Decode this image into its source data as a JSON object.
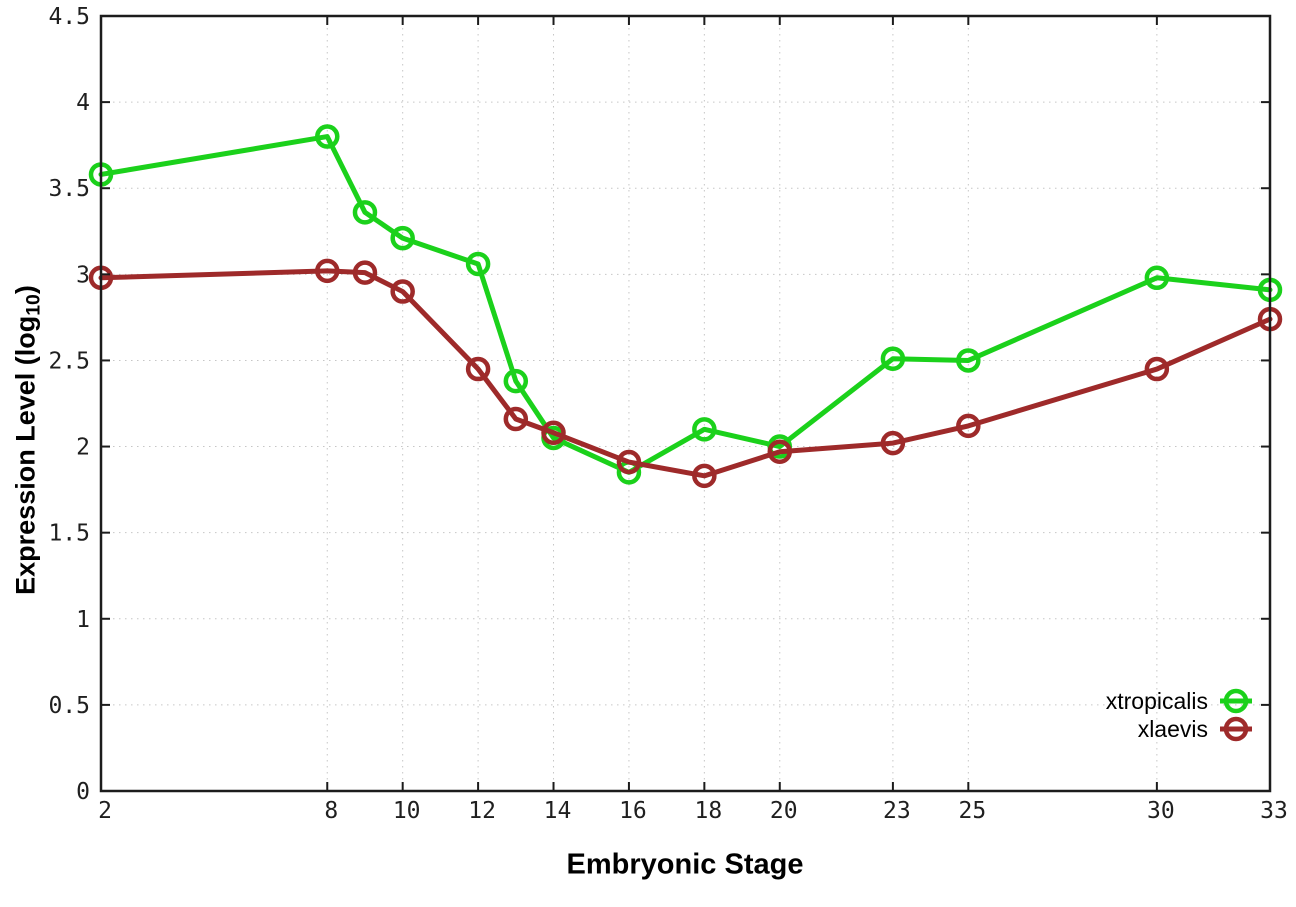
{
  "figure": {
    "background": "#ffffff",
    "border_color": "#1c1c1c",
    "grid_color": "#c6c6c6",
    "tick_text_color": "#1f1f1f"
  },
  "chart_data": {
    "type": "line",
    "title": "",
    "xlabel": "Embryonic Stage",
    "ylabel": "Expression Level (log10)",
    "ylabel_parts": {
      "main": "Expression Level (log",
      "sub": "10",
      "close": ")"
    },
    "x": [
      2,
      8,
      9,
      10,
      12,
      13,
      14,
      16,
      18,
      20,
      23,
      25,
      30,
      33
    ],
    "series": [
      {
        "name": "xtropicalis",
        "color": "#1bd11b",
        "marker": "open-circle",
        "values": [
          3.58,
          3.8,
          3.36,
          3.21,
          3.06,
          2.38,
          2.05,
          1.85,
          2.1,
          2.0,
          2.51,
          2.5,
          2.98,
          2.91
        ]
      },
      {
        "name": "xlaevis",
        "color": "#9e2a2a",
        "marker": "open-circle",
        "values": [
          2.98,
          3.02,
          3.01,
          2.9,
          2.45,
          2.16,
          2.08,
          1.91,
          1.83,
          1.97,
          2.02,
          2.12,
          2.45,
          2.74
        ]
      }
    ],
    "x_ticks": [
      2,
      8,
      10,
      12,
      14,
      16,
      18,
      20,
      23,
      25,
      30,
      33
    ],
    "x_tick_labels": [
      "2",
      "8",
      "10",
      "12",
      "14",
      "16",
      "18",
      "20",
      "23",
      "25",
      "30",
      "33"
    ],
    "y_ticks": [
      0,
      0.5,
      1,
      1.5,
      2,
      2.5,
      3,
      3.5,
      4,
      4.5
    ],
    "y_tick_labels": [
      "0",
      "0.5",
      "1",
      "1.5",
      "2",
      "2.5",
      "3",
      "3.5",
      "4",
      "4.5"
    ],
    "xlim": [
      2,
      33
    ],
    "ylim": [
      0,
      4.5
    ],
    "grid": true,
    "legend_position": "bottom-right",
    "legend": [
      "xtropicalis",
      "xlaevis"
    ]
  }
}
